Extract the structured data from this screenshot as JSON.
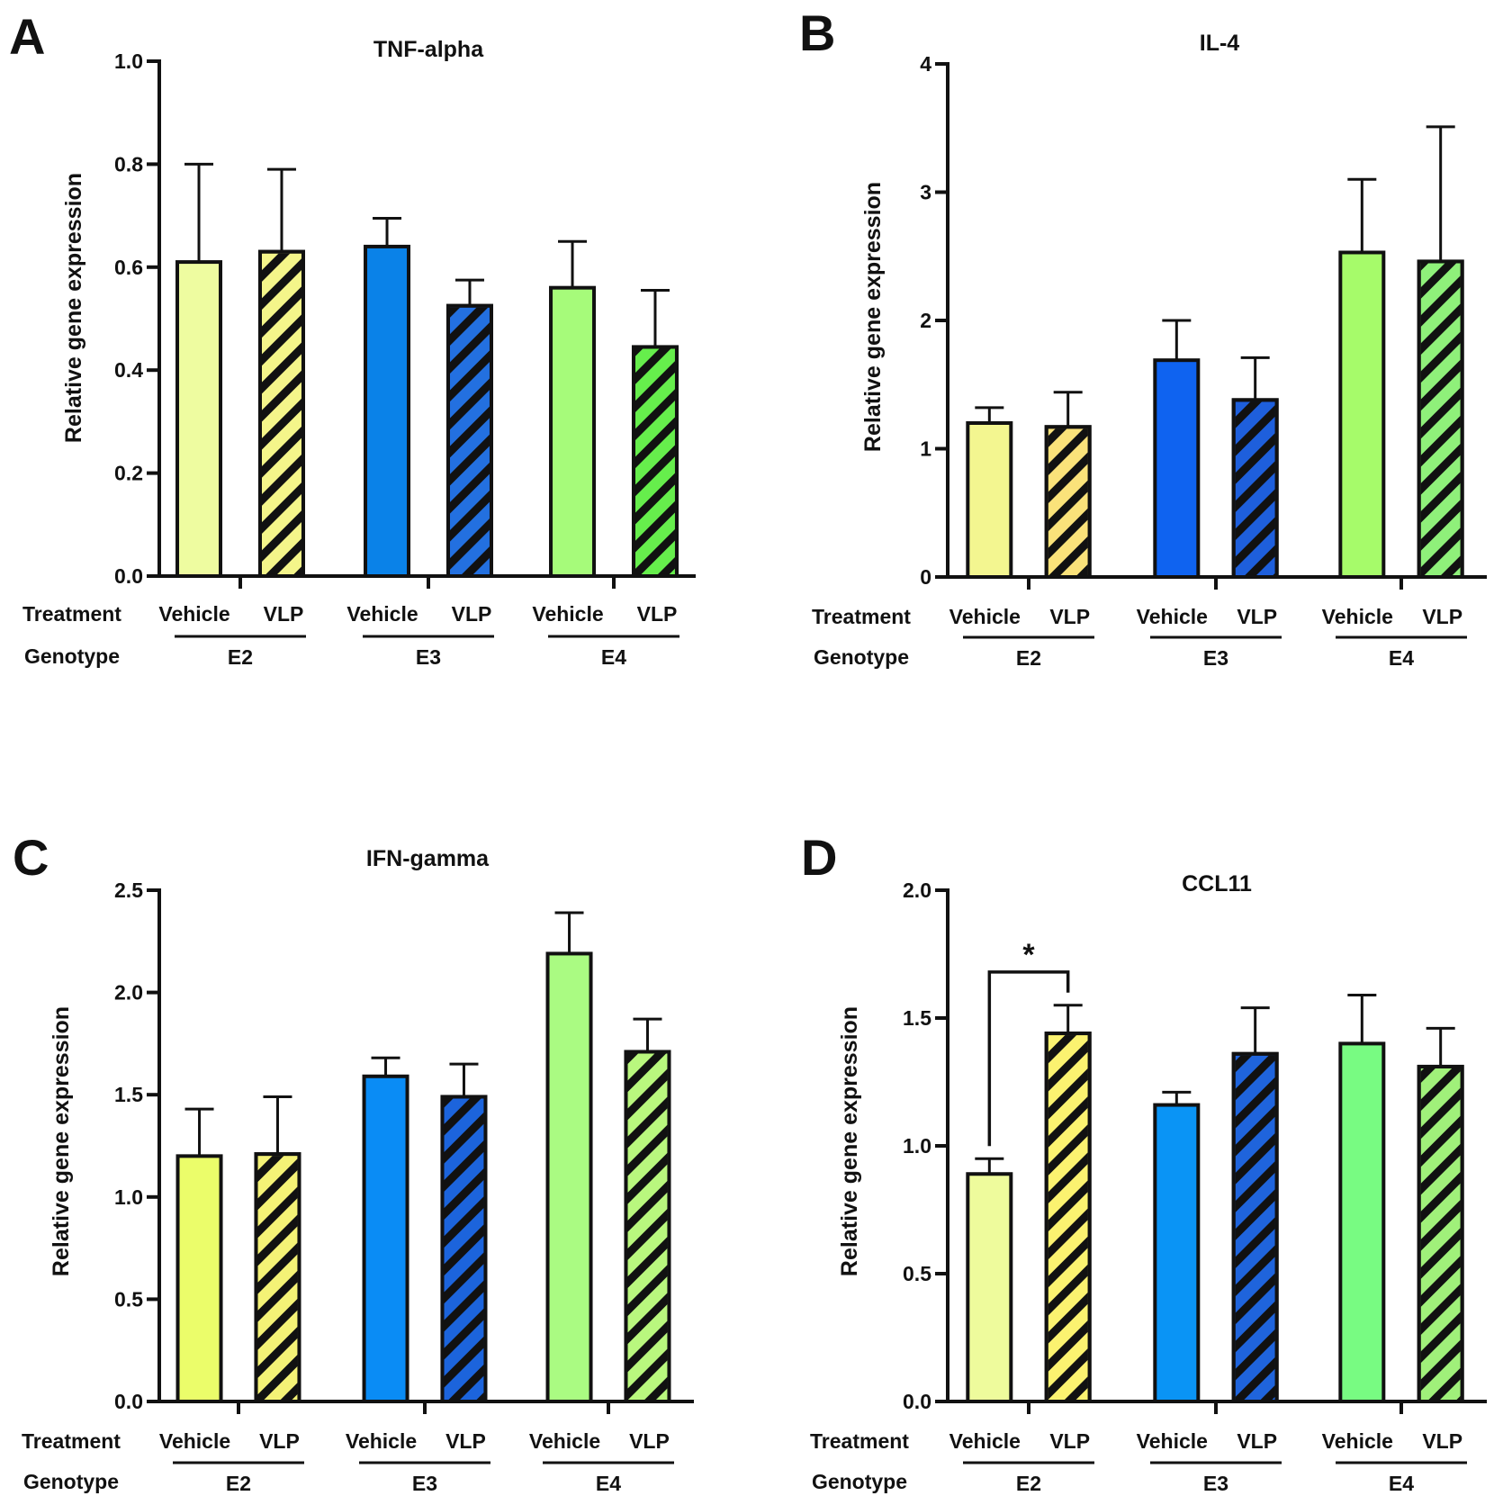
{
  "figure": {
    "row_labels": {
      "treatment": "Treatment",
      "genotype": "Genotype"
    }
  },
  "chart_data": [
    {
      "panel": "A",
      "type": "bar",
      "title": "TNF-alpha",
      "ylabel": "Relative gene expression",
      "xlabel": "",
      "ylim": [
        0,
        1.0
      ],
      "yticks": [
        0.0,
        0.2,
        0.4,
        0.6,
        0.8,
        1.0
      ],
      "tick_labels": [
        "0.0",
        "0.2",
        "0.4",
        "0.6",
        "0.8",
        "1.0"
      ],
      "groups": [
        "E2",
        "E3",
        "E4"
      ],
      "treatments": [
        "Vehicle",
        "VLP"
      ],
      "series": [
        {
          "name": "Vehicle",
          "values": [
            0.61,
            0.64,
            0.56
          ],
          "errors": [
            0.19,
            0.055,
            0.09
          ],
          "colors": [
            "#eefca0",
            "#0a82e8",
            "#a6fb7a"
          ],
          "hatched": false
        },
        {
          "name": "VLP",
          "values": [
            0.63,
            0.525,
            0.445
          ],
          "errors": [
            0.16,
            0.05,
            0.11
          ],
          "colors": [
            "#f4f58a",
            "#2370e0",
            "#66ee4c"
          ],
          "hatched": true
        }
      ],
      "annotations": []
    },
    {
      "panel": "B",
      "type": "bar",
      "title": "IL-4",
      "ylabel": "Relative gene expression",
      "xlabel": "",
      "ylim": [
        0,
        4
      ],
      "yticks": [
        0,
        1,
        2,
        3,
        4
      ],
      "tick_labels": [
        "0",
        "1",
        "2",
        "3",
        "4"
      ],
      "groups": [
        "E2",
        "E3",
        "E4"
      ],
      "treatments": [
        "Vehicle",
        "VLP"
      ],
      "series": [
        {
          "name": "Vehicle",
          "values": [
            1.2,
            1.69,
            2.53
          ],
          "errors": [
            0.12,
            0.31,
            0.57
          ],
          "colors": [
            "#f3f690",
            "#0f63f0",
            "#a6fb6a"
          ],
          "hatched": false
        },
        {
          "name": "VLP",
          "values": [
            1.17,
            1.38,
            2.46
          ],
          "errors": [
            0.27,
            0.33,
            1.05
          ],
          "colors": [
            "#fae27a",
            "#1e5fdc",
            "#8ff07a"
          ],
          "hatched": true
        }
      ],
      "annotations": []
    },
    {
      "panel": "C",
      "type": "bar",
      "title": "IFN-gamma",
      "ylabel": "Relative gene expression",
      "xlabel": "",
      "ylim": [
        0,
        2.5
      ],
      "yticks": [
        0.0,
        0.5,
        1.0,
        1.5,
        2.0,
        2.5
      ],
      "tick_labels": [
        "0.0",
        "0.5",
        "1.0",
        "1.5",
        "2.0",
        "2.5"
      ],
      "groups": [
        "E2",
        "E3",
        "E4"
      ],
      "treatments": [
        "Vehicle",
        "VLP"
      ],
      "series": [
        {
          "name": "Vehicle",
          "values": [
            1.2,
            1.59,
            2.19
          ],
          "errors": [
            0.23,
            0.09,
            0.2
          ],
          "colors": [
            "#ebfd6a",
            "#0a8cf5",
            "#aafb82"
          ],
          "hatched": false
        },
        {
          "name": "VLP",
          "values": [
            1.21,
            1.49,
            1.71
          ],
          "errors": [
            0.28,
            0.16,
            0.16
          ],
          "colors": [
            "#f4f276",
            "#1c64dc",
            "#b9f77e"
          ],
          "hatched": true
        }
      ],
      "annotations": []
    },
    {
      "panel": "D",
      "type": "bar",
      "title": "CCL11",
      "ylabel": "Relative gene expression",
      "xlabel": "",
      "ylim": [
        0,
        2.0
      ],
      "yticks": [
        0.0,
        0.5,
        1.0,
        1.5,
        2.0
      ],
      "tick_labels": [
        "0.0",
        "0.5",
        "1.0",
        "1.5",
        "2.0"
      ],
      "groups": [
        "E2",
        "E3",
        "E4"
      ],
      "treatments": [
        "Vehicle",
        "VLP"
      ],
      "series": [
        {
          "name": "Vehicle",
          "values": [
            0.89,
            1.16,
            1.4
          ],
          "errors": [
            0.06,
            0.05,
            0.19
          ],
          "colors": [
            "#eefb9c",
            "#0a94f5",
            "#78fb82"
          ],
          "hatched": false
        },
        {
          "name": "VLP",
          "values": [
            1.44,
            1.36,
            1.31
          ],
          "errors": [
            0.11,
            0.18,
            0.15
          ],
          "colors": [
            "#fbf270",
            "#1f64dc",
            "#a0f07a"
          ],
          "hatched": true
        }
      ],
      "annotations": [
        {
          "text": "*",
          "from_group": 0,
          "from_treatment": 0,
          "to_group": 0,
          "to_treatment": 1,
          "level": 1.68
        }
      ]
    }
  ]
}
